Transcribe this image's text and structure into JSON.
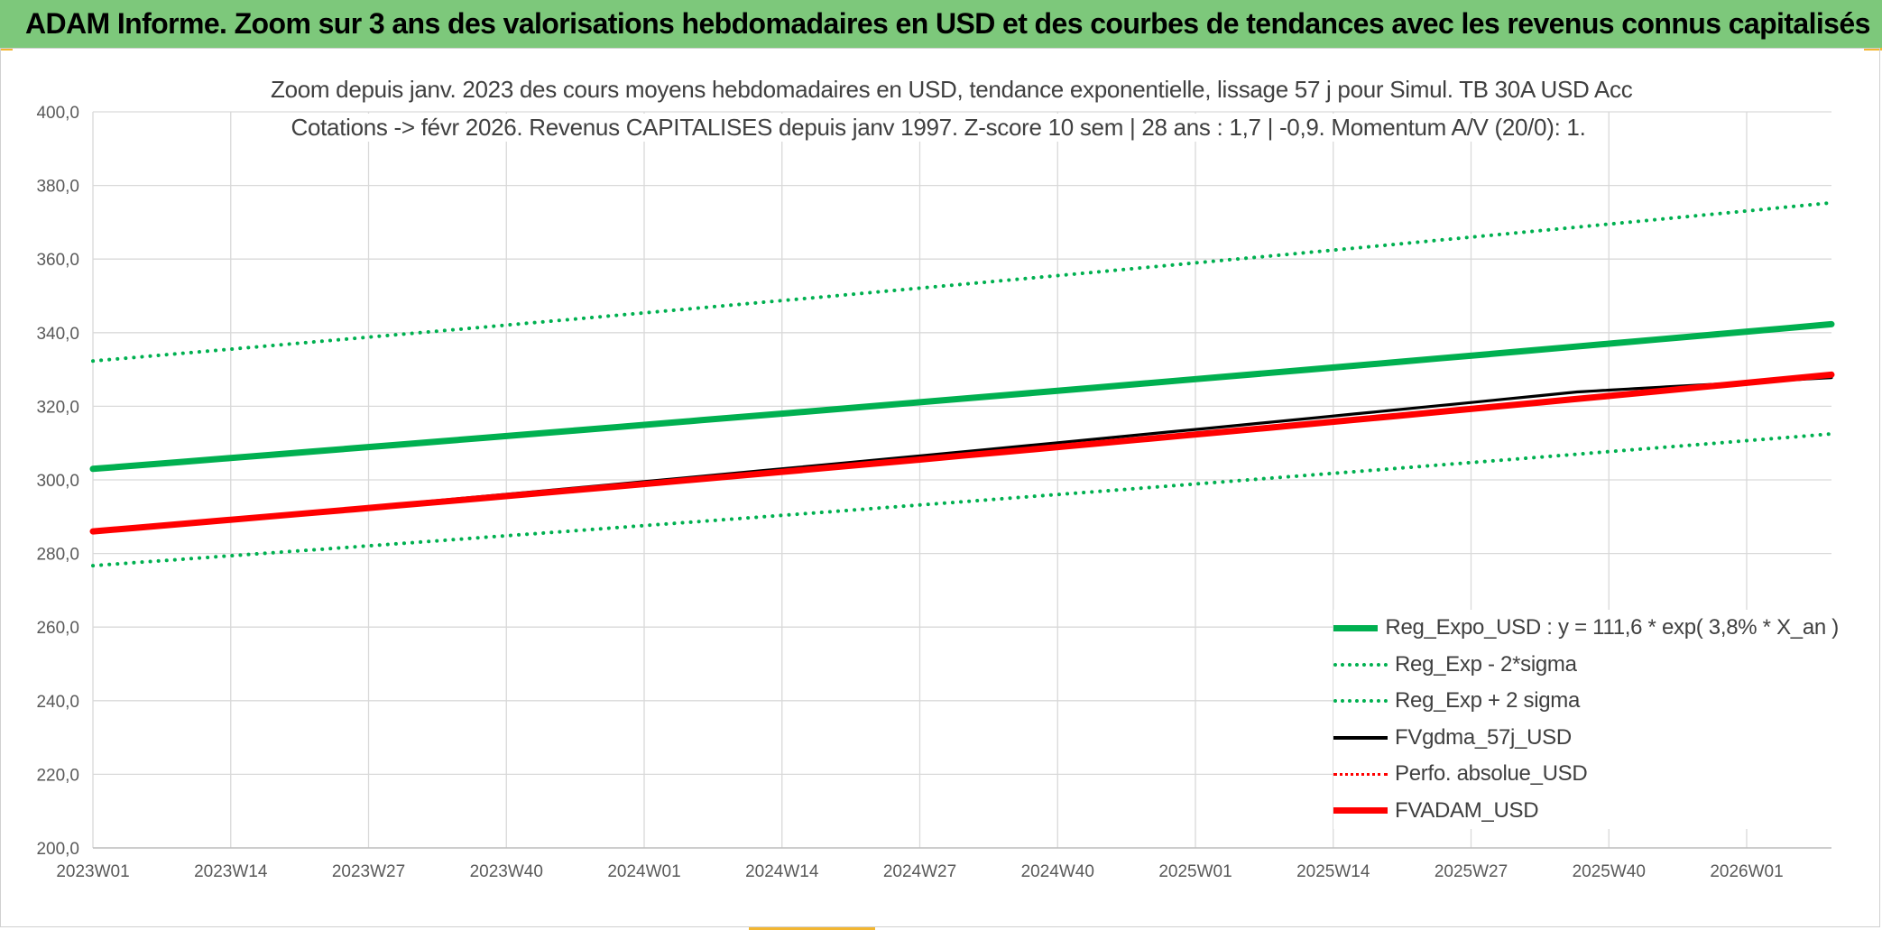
{
  "header": {
    "title": "ADAM Informe. Zoom sur 3 ans des valorisations hebdomadaires en USD et des courbes de tendances avec les revenus connus capitalisés"
  },
  "chart_data": {
    "type": "line",
    "title_line1": "Zoom depuis janv. 2023 des cours moyens hebdomadaires en USD, tendance exponentielle, lissage 57 j pour Simul. TB 30A USD Acc",
    "title_line2": "Cotations -> févr 2026. Revenus CAPITALISES depuis janv 1997. Z-score 10 sem | 28 ans : 1,7 | -0,9. Momentum A/V (20/0): 1.",
    "xlabel": "",
    "ylabel": "",
    "ylim": [
      200,
      400
    ],
    "y_ticks": [
      "200,0",
      "220,0",
      "240,0",
      "260,0",
      "280,0",
      "300,0",
      "320,0",
      "340,0",
      "360,0",
      "380,0",
      "400,0"
    ],
    "x_ticks": [
      "2023W01",
      "2023W14",
      "2023W27",
      "2023W40",
      "2024W01",
      "2024W14",
      "2024W27",
      "2024W40",
      "2025W01",
      "2025W14",
      "2025W27",
      "2025W40",
      "2026W01"
    ],
    "x_range_weeks": [
      0,
      164
    ],
    "grid": true,
    "legend_position": "bottom-right",
    "series": [
      {
        "name": "Reg_Expo_USD : y = 111,6 * exp( 3,8% *  X_an )",
        "color": "#00b050",
        "style": "solid-thick",
        "x": [
          0,
          164
        ],
        "values": [
          303.0,
          342.3
        ]
      },
      {
        "name": "Reg_Exp - 2*sigma",
        "color": "#00b050",
        "style": "dotted",
        "x": [
          0,
          164
        ],
        "values": [
          276.7,
          312.5
        ]
      },
      {
        "name": "Reg_Exp + 2 sigma",
        "color": "#00b050",
        "style": "dotted",
        "x": [
          0,
          164
        ],
        "values": [
          332.3,
          375.3
        ]
      },
      {
        "name": "FVgdma_57j_USD",
        "color": "#000000",
        "style": "solid",
        "x": [
          0,
          140,
          164
        ],
        "values": [
          286.0,
          323.9,
          327.8
        ]
      },
      {
        "name": "Perfo. absolue_USD",
        "color": "#ff0000",
        "style": "dotted-thin",
        "x": [],
        "values": []
      },
      {
        "name": "FVADAM_USD",
        "color": "#ff0000",
        "style": "solid-thick",
        "x": [
          0,
          164
        ],
        "values": [
          286.0,
          328.6
        ]
      }
    ]
  }
}
